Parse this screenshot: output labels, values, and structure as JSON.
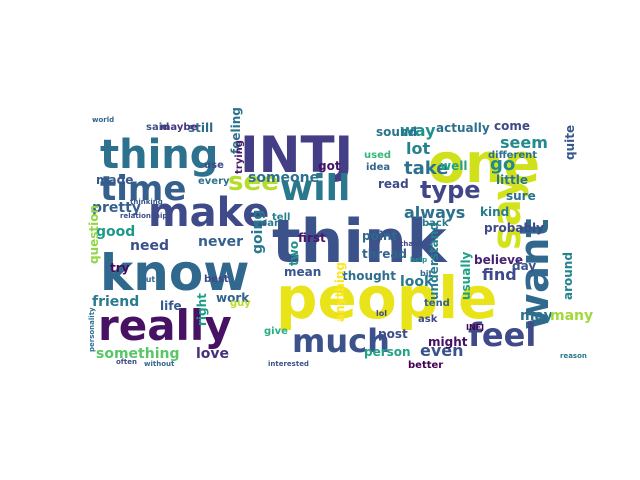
{
  "words": [
    {
      "text": "people",
      "color": "#e8e419"
    },
    {
      "text": "think",
      "color": "#3b528b"
    },
    {
      "text": "know",
      "color": "#31688e"
    },
    {
      "text": "one",
      "color": "#d0e11c"
    },
    {
      "text": "INTJ",
      "color": "#433e85"
    },
    {
      "text": "really",
      "color": "#471164"
    },
    {
      "text": "thing",
      "color": "#2c728e"
    },
    {
      "text": "make",
      "color": "#3e4a89"
    },
    {
      "text": "time",
      "color": "#355f8d"
    },
    {
      "text": "will",
      "color": "#2a788e"
    },
    {
      "text": "say",
      "color": "#d2e21b"
    },
    {
      "text": "want",
      "color": "#31688e"
    },
    {
      "text": "much",
      "color": "#3b528b"
    },
    {
      "text": "feel",
      "color": "#3e4a89"
    },
    {
      "text": "see",
      "color": "#b5de2b"
    },
    {
      "text": "type",
      "color": "#404688"
    },
    {
      "text": "lot",
      "color": "#26818e"
    },
    {
      "text": "take",
      "color": "#2c728e"
    },
    {
      "text": "way",
      "color": "#21908d"
    },
    {
      "text": "seem",
      "color": "#238a8d"
    },
    {
      "text": "go",
      "color": "#23898e"
    },
    {
      "text": "always",
      "color": "#2d718e"
    },
    {
      "text": "good",
      "color": "#1f9a8a"
    },
    {
      "text": "need",
      "color": "#3c4f8a"
    },
    {
      "text": "never",
      "color": "#34618d"
    },
    {
      "text": "going",
      "color": "#2a788e"
    },
    {
      "text": "someone",
      "color": "#2c728e"
    },
    {
      "text": "pretty",
      "color": "#355f8d"
    },
    {
      "text": "friend",
      "color": "#297b8e"
    },
    {
      "text": "something",
      "color": "#58c765"
    },
    {
      "text": "love",
      "color": "#472f7d"
    },
    {
      "text": "life",
      "color": "#38598c"
    },
    {
      "text": "find",
      "color": "#3e4a89"
    },
    {
      "text": "thought",
      "color": "#2e6e8e"
    },
    {
      "text": "look",
      "color": "#2a788e"
    },
    {
      "text": "even",
      "color": "#3b528b"
    },
    {
      "text": "person",
      "color": "#20a386"
    },
    {
      "text": "post",
      "color": "#3d4d8a"
    },
    {
      "text": "may",
      "color": "#2c728e"
    },
    {
      "text": "many",
      "color": "#a0da39"
    },
    {
      "text": "actually",
      "color": "#2d708e"
    },
    {
      "text": "come",
      "color": "#3f4889"
    },
    {
      "text": "little",
      "color": "#2a768e"
    },
    {
      "text": "quite",
      "color": "#38588c"
    },
    {
      "text": "sure",
      "color": "#2c728e"
    },
    {
      "text": "kind",
      "color": "#287d8e"
    },
    {
      "text": "probably",
      "color": "#3e4989"
    },
    {
      "text": "believe",
      "color": "#482173"
    },
    {
      "text": "around",
      "color": "#25848e"
    },
    {
      "text": "usually",
      "color": "#1fa187"
    },
    {
      "text": "understand",
      "color": "#26818e"
    },
    {
      "text": "point",
      "color": "#31688e"
    },
    {
      "text": "thread",
      "color": "#33638d"
    },
    {
      "text": "first",
      "color": "#481769"
    },
    {
      "text": "mean",
      "color": "#3a548c"
    },
    {
      "text": "tell",
      "color": "#26828e"
    },
    {
      "text": "work",
      "color": "#33638d"
    },
    {
      "text": "right",
      "color": "#1e9c89"
    },
    {
      "text": "best",
      "color": "#3f4788"
    },
    {
      "text": "give",
      "color": "#29af7f"
    },
    {
      "text": "two",
      "color": "#20928c"
    },
    {
      "text": "year",
      "color": "#2a788e"
    },
    {
      "text": "still",
      "color": "#31688e"
    },
    {
      "text": "said",
      "color": "#3b528b"
    },
    {
      "text": "maybe",
      "color": "#46337e"
    },
    {
      "text": "feeling",
      "color": "#2c728e"
    },
    {
      "text": "use",
      "color": "#3e4a89"
    },
    {
      "text": "made",
      "color": "#38598c"
    },
    {
      "text": "every",
      "color": "#2d708e"
    },
    {
      "text": "question",
      "color": "#8fd744"
    },
    {
      "text": "try",
      "color": "#46085c"
    },
    {
      "text": "got",
      "color": "#471365"
    },
    {
      "text": "read",
      "color": "#3e4a89"
    },
    {
      "text": "well",
      "color": "#20a386"
    },
    {
      "text": "idea",
      "color": "#33638d"
    },
    {
      "text": "sound",
      "color": "#2c728e"
    },
    {
      "text": "different",
      "color": "#2d708e"
    },
    {
      "text": "might",
      "color": "#471063"
    },
    {
      "text": "day",
      "color": "#3b528b"
    },
    {
      "text": "trying",
      "color": "#481a6c"
    },
    {
      "text": "guy",
      "color": "#b8de29"
    },
    {
      "text": "anything",
      "color": "#fde725"
    },
    {
      "text": "tend",
      "color": "#33638d"
    },
    {
      "text": "ask",
      "color": "#3e4a89"
    },
    {
      "text": "better",
      "color": "#440154"
    },
    {
      "text": "used",
      "color": "#35b779"
    },
    {
      "text": "back",
      "color": "#2a788e"
    },
    {
      "text": "relationship",
      "color": "#3e4a89"
    },
    {
      "text": "world",
      "color": "#33638d"
    },
    {
      "text": "put",
      "color": "#31688e"
    },
    {
      "text": "thinking",
      "color": "#3b528b"
    },
    {
      "text": "personality",
      "color": "#2c728e"
    },
    {
      "text": "often",
      "color": "#3e4a89"
    },
    {
      "text": "without",
      "color": "#31688e"
    },
    {
      "text": "interested",
      "color": "#3b528b"
    },
    {
      "text": "thank",
      "color": "#3e4a89"
    },
    {
      "text": "reason",
      "color": "#2a788e"
    },
    {
      "text": "help",
      "color": "#21918c"
    },
    {
      "text": "bit",
      "color": "#31688e"
    },
    {
      "text": "lol",
      "color": "#3e4a89"
    },
    {
      "text": "INFJ",
      "color": "#440154"
    }
  ]
}
